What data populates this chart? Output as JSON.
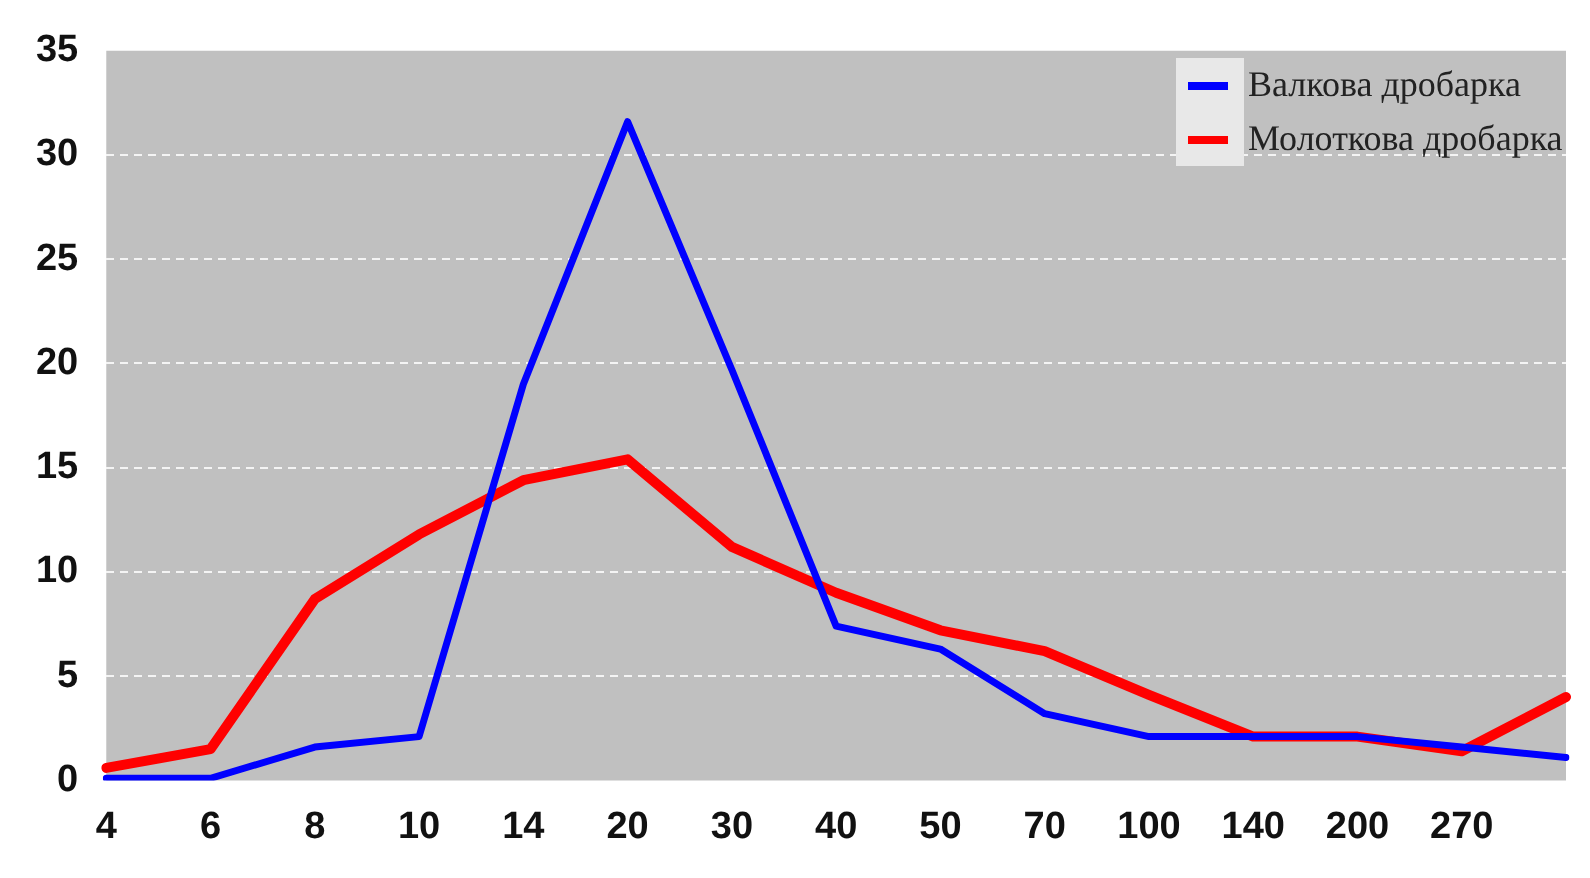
{
  "chart_data": {
    "type": "line",
    "categories": [
      "4",
      "6",
      "8",
      "10",
      "14",
      "20",
      "30",
      "40",
      "50",
      "70",
      "100",
      "140",
      "200",
      "270",
      null
    ],
    "series": [
      {
        "name": "Валкова дробарка",
        "color": "#0000ff",
        "values": [
          0.1,
          0.1,
          1.6,
          2.1,
          19,
          31.6,
          19.7,
          7.4,
          6.3,
          3.2,
          2.1,
          2.1,
          2.1,
          1.6,
          1.1
        ]
      },
      {
        "name": "Молоткова дробарка",
        "color": "#ff0000",
        "values": [
          0.6,
          1.5,
          8.7,
          11.8,
          14.4,
          15.4,
          11.2,
          9.0,
          7.2,
          6.2,
          4.1,
          2.1,
          2.1,
          1.4,
          4.0
        ]
      }
    ],
    "ylim": [
      0,
      35
    ],
    "yticks": [
      0,
      5,
      10,
      15,
      20,
      25,
      30,
      35
    ],
    "grid": "y",
    "legend": "top right",
    "marker": "none",
    "line_style": "solid"
  }
}
